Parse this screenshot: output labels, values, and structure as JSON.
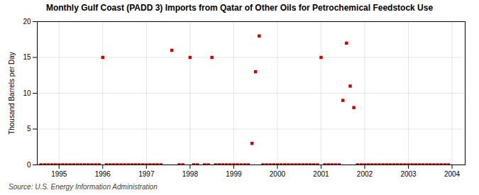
{
  "chart_data": {
    "type": "scatter",
    "title": "Monthly Gulf Coast (PADD 3) Imports from Qatar of Other Oils for Petrochemical Feedstock Use",
    "ylabel": "Thousand Barrels per Day",
    "source": "Source: U.S. Energy Information Administration",
    "color": "#cc0000",
    "marker": "square",
    "grid": true,
    "xlim": [
      1994.5,
      2004.3
    ],
    "ylim": [
      0,
      20
    ],
    "xticks": [
      1995,
      1996,
      1997,
      1998,
      1999,
      2000,
      2001,
      2002,
      2003,
      2004
    ],
    "yticks": [
      0,
      5,
      10,
      15,
      20
    ],
    "x": [
      1994.583,
      1994.667,
      1994.75,
      1994.833,
      1994.917,
      1995.0,
      1995.083,
      1995.167,
      1995.25,
      1995.333,
      1995.417,
      1995.5,
      1995.583,
      1995.667,
      1995.75,
      1995.833,
      1995.917,
      1996.0,
      1996.083,
      1996.167,
      1996.25,
      1996.333,
      1996.417,
      1996.5,
      1996.583,
      1996.667,
      1996.75,
      1996.833,
      1996.917,
      1997.0,
      1997.083,
      1997.167,
      1997.25,
      1997.333,
      1997.583,
      1997.75,
      1997.833,
      1998.0,
      1998.083,
      1998.167,
      1998.333,
      1998.417,
      1998.5,
      1998.583,
      1998.667,
      1998.75,
      1998.833,
      1998.917,
      1999.0,
      1999.083,
      1999.167,
      1999.25,
      1999.333,
      1999.417,
      1999.5,
      1999.583,
      1999.667,
      1999.75,
      1999.833,
      1999.917,
      2000.0,
      2000.083,
      2000.167,
      2000.25,
      2000.333,
      2000.417,
      2000.5,
      2000.583,
      2000.667,
      2000.75,
      2000.833,
      2000.917,
      2001.0,
      2001.083,
      2001.167,
      2001.25,
      2001.333,
      2001.417,
      2001.5,
      2001.583,
      2001.667,
      2001.75,
      2001.833,
      2001.917,
      2002.0,
      2002.083,
      2002.167,
      2002.25,
      2002.333,
      2002.417,
      2002.5,
      2002.583,
      2002.667,
      2002.75,
      2002.833,
      2002.917,
      2003.0,
      2003.083,
      2003.167,
      2003.25,
      2003.333,
      2003.417,
      2003.5,
      2003.583,
      2003.667,
      2003.75,
      2003.833,
      2003.917
    ],
    "values": [
      0,
      0,
      0,
      0,
      0,
      0,
      0,
      0,
      0,
      0,
      0,
      0,
      0,
      0,
      0,
      0,
      0,
      15,
      0,
      0,
      0,
      0,
      0,
      0,
      0,
      0,
      0,
      0,
      0,
      0,
      0,
      0,
      0,
      0,
      16,
      0,
      0,
      15,
      0,
      0,
      0,
      0,
      15,
      0,
      0,
      0,
      0,
      0,
      0,
      0,
      0,
      0,
      0,
      3,
      13,
      18,
      0,
      0,
      0,
      0,
      0,
      0,
      0,
      0,
      0,
      0,
      0,
      0,
      0,
      0,
      0,
      0,
      15,
      0,
      0,
      0,
      0,
      0,
      9,
      17,
      11,
      8,
      0,
      0,
      0,
      0,
      0,
      0,
      0,
      0,
      0,
      0,
      0,
      0,
      0,
      0,
      0,
      0,
      0,
      0,
      0,
      0,
      0,
      0,
      0,
      0,
      0,
      0
    ]
  }
}
